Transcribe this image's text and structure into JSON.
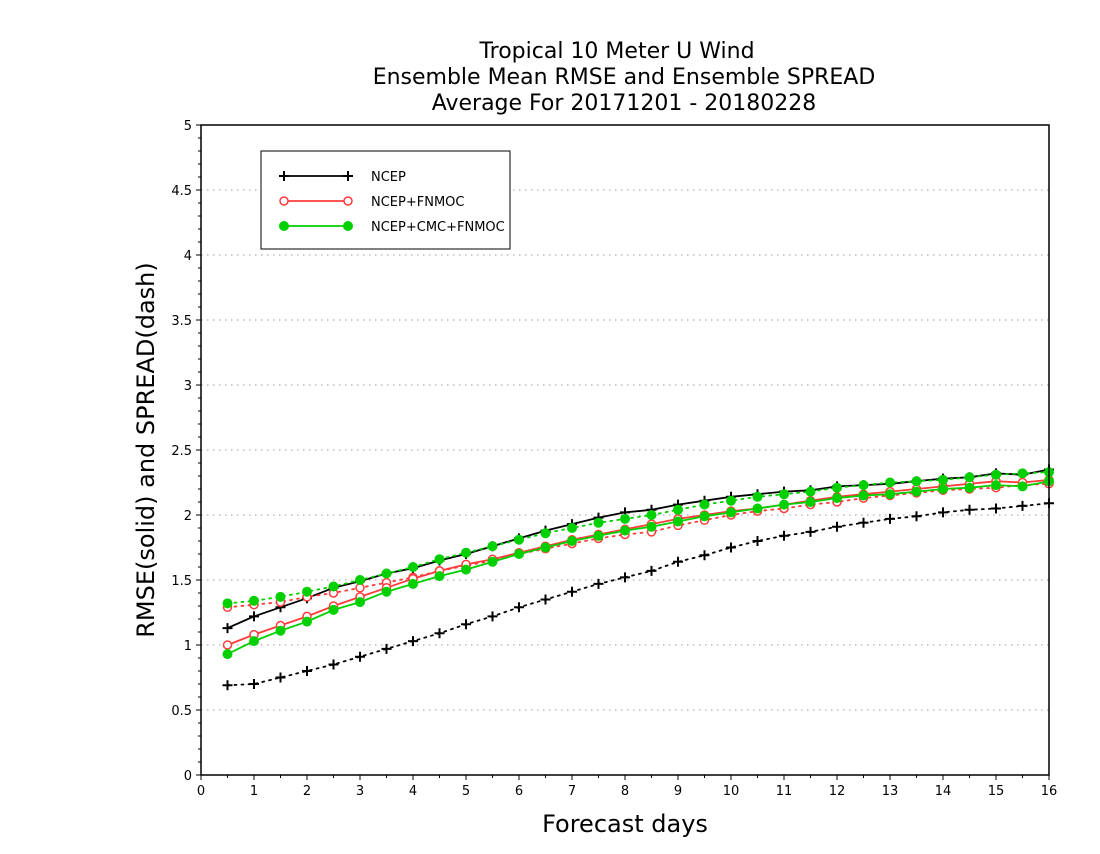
{
  "chart_data": {
    "type": "line",
    "title": [
      "Tropical 10 Meter U Wind",
      "Ensemble Mean RMSE and Ensemble SPREAD",
      "Average For 20171201 - 20180228"
    ],
    "xlabel": "Forecast days",
    "ylabel": "RMSE(solid) and SPREAD(dash)",
    "xlim": [
      0,
      16
    ],
    "ylim": [
      0,
      5
    ],
    "xticks": [
      "0",
      "1",
      "2",
      "3",
      "4",
      "5",
      "6",
      "7",
      "8",
      "9",
      "10",
      "11",
      "12",
      "13",
      "14",
      "15",
      "16"
    ],
    "yticks": [
      "0",
      "0.5",
      "1",
      "1.5",
      "2",
      "2.5",
      "3",
      "3.5",
      "4",
      "4.5",
      "5"
    ],
    "grid": "horizontal dotted",
    "legend_position": "top-left",
    "x": [
      0.5,
      1,
      1.5,
      2,
      2.5,
      3,
      3.5,
      4,
      4.5,
      5,
      5.5,
      6,
      6.5,
      7,
      7.5,
      8,
      8.5,
      9,
      9.5,
      10,
      10.5,
      11,
      11.5,
      12,
      12.5,
      13,
      13.5,
      14,
      14.5,
      15,
      15.5,
      16
    ],
    "series": [
      {
        "name": "NCEP",
        "color": "#000000",
        "marker": "plus",
        "rmse": [
          1.13,
          1.22,
          1.29,
          1.36,
          1.44,
          1.49,
          1.55,
          1.59,
          1.65,
          1.7,
          1.76,
          1.82,
          1.88,
          1.93,
          1.98,
          2.02,
          2.04,
          2.08,
          2.11,
          2.14,
          2.16,
          2.18,
          2.19,
          2.22,
          2.23,
          2.24,
          2.26,
          2.28,
          2.29,
          2.32,
          2.31,
          2.35
        ],
        "spread": [
          0.69,
          0.7,
          0.75,
          0.8,
          0.85,
          0.91,
          0.97,
          1.03,
          1.09,
          1.16,
          1.22,
          1.29,
          1.35,
          1.41,
          1.47,
          1.52,
          1.57,
          1.64,
          1.69,
          1.75,
          1.8,
          1.84,
          1.87,
          1.91,
          1.94,
          1.97,
          1.99,
          2.02,
          2.04,
          2.05,
          2.07,
          2.09
        ]
      },
      {
        "name": "NCEP+FNMOC",
        "color": "#ff3b3b",
        "marker": "open-circle",
        "rmse": [
          1.0,
          1.08,
          1.15,
          1.22,
          1.3,
          1.37,
          1.44,
          1.51,
          1.57,
          1.62,
          1.66,
          1.71,
          1.76,
          1.81,
          1.85,
          1.89,
          1.93,
          1.97,
          2.0,
          2.03,
          2.05,
          2.08,
          2.11,
          2.14,
          2.16,
          2.18,
          2.2,
          2.22,
          2.24,
          2.26,
          2.25,
          2.27
        ],
        "spread": [
          1.29,
          1.31,
          1.33,
          1.37,
          1.4,
          1.44,
          1.48,
          1.52,
          1.57,
          1.61,
          1.65,
          1.7,
          1.74,
          1.78,
          1.82,
          1.85,
          1.87,
          1.92,
          1.96,
          2.0,
          2.03,
          2.05,
          2.08,
          2.1,
          2.13,
          2.15,
          2.17,
          2.19,
          2.2,
          2.21,
          2.23,
          2.24
        ]
      },
      {
        "name": "NCEP+CMC+FNMOC",
        "color": "#00d000",
        "marker": "filled-circle",
        "rmse": [
          0.93,
          1.03,
          1.11,
          1.18,
          1.27,
          1.33,
          1.41,
          1.47,
          1.53,
          1.58,
          1.64,
          1.7,
          1.75,
          1.8,
          1.84,
          1.88,
          1.91,
          1.95,
          1.99,
          2.02,
          2.05,
          2.08,
          2.1,
          2.13,
          2.15,
          2.16,
          2.18,
          2.2,
          2.21,
          2.23,
          2.22,
          2.26
        ],
        "spread": [
          1.32,
          1.34,
          1.37,
          1.41,
          1.45,
          1.5,
          1.55,
          1.6,
          1.66,
          1.71,
          1.76,
          1.81,
          1.86,
          1.9,
          1.94,
          1.97,
          2.0,
          2.04,
          2.08,
          2.11,
          2.14,
          2.16,
          2.18,
          2.21,
          2.23,
          2.25,
          2.26,
          2.27,
          2.29,
          2.31,
          2.32,
          2.33
        ]
      }
    ]
  }
}
